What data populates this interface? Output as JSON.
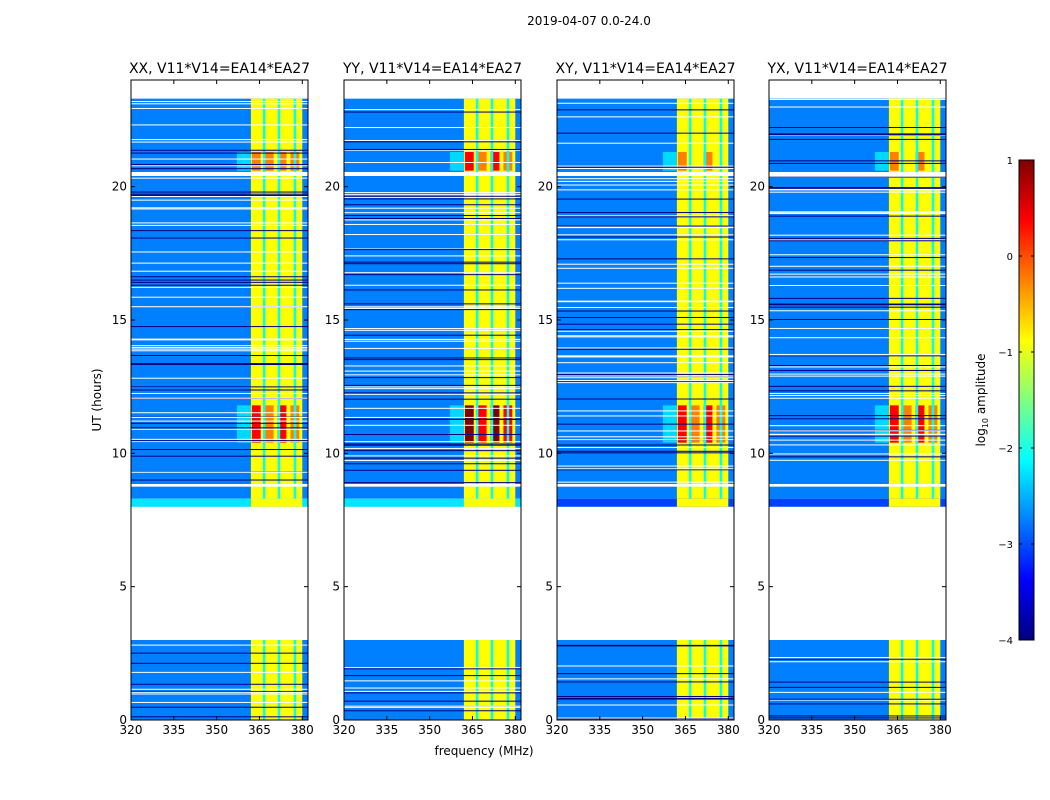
{
  "figure_title": "2019-04-07 0.0-24.0",
  "colormap": [
    "#00007f",
    "#0000ff",
    "#0080ff",
    "#00ffff",
    "#80ff80",
    "#ffff00",
    "#ff8000",
    "#ff0000",
    "#7f0000"
  ],
  "chart_data": {
    "type": "heatmap",
    "suptitle": "2019-04-07 0.0-24.0",
    "xlabel": "frequency (MHz)",
    "ylabel": "UT (hours)",
    "xlim": [
      320,
      382
    ],
    "ylim": [
      0,
      24
    ],
    "xticks": [
      320,
      335,
      350,
      365,
      380
    ],
    "yticks": [
      0,
      5,
      10,
      15,
      20
    ],
    "panels": [
      {
        "title": "XX, V11*V14=EA14*EA27",
        "peak_value": 0.4
      },
      {
        "title": "YY, V11*V14=EA14*EA27",
        "peak_value": 0.9
      },
      {
        "title": "XY, V11*V14=EA14*EA27",
        "peak_value": 0.3
      },
      {
        "title": "YX, V11*V14=EA14*EA27",
        "peak_value": 0.3
      }
    ],
    "signal_band_mhz": [
      362,
      380
    ],
    "background_value": -2.8,
    "band_value": -0.7,
    "enhanced_rows_ut": [
      [
        10.4,
        11.8
      ],
      [
        20.6,
        21.3
      ]
    ],
    "data_gaps_ut": [
      [
        3.0,
        8.0
      ],
      [
        8.2,
        8.3
      ],
      [
        8.75,
        8.85
      ],
      [
        20.4,
        20.55
      ]
    ],
    "colorbar": {
      "label": "log",
      "label_sub": "10",
      "label_suffix": " amplitude",
      "vmin": -4,
      "vmax": 1,
      "ticks": [
        {
          "value": 1,
          "label": "1"
        },
        {
          "value": 0,
          "label": "0"
        },
        {
          "value": -1,
          "label": "−1"
        },
        {
          "value": -2,
          "label": "−2"
        },
        {
          "value": -3,
          "label": "−3"
        },
        {
          "value": -4,
          "label": "−4"
        }
      ]
    }
  }
}
